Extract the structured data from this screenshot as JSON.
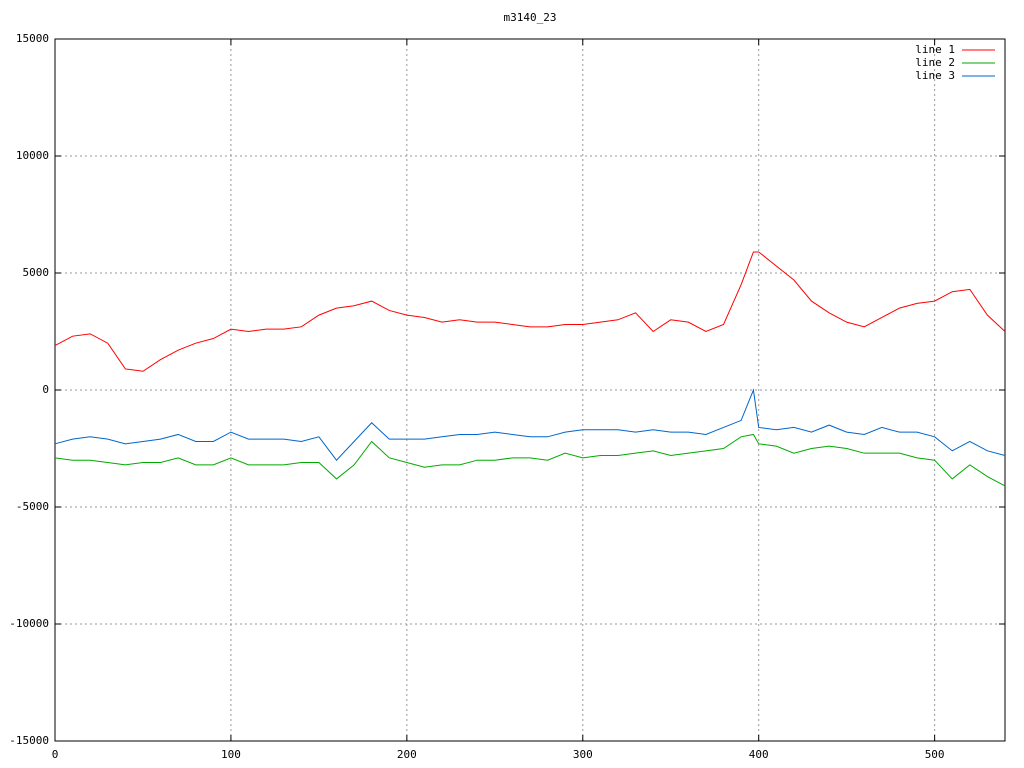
{
  "chart_data": {
    "type": "line",
    "title": "m3140_23",
    "x": [
      0,
      10,
      20,
      30,
      40,
      50,
      60,
      70,
      80,
      90,
      100,
      110,
      120,
      130,
      140,
      150,
      160,
      170,
      180,
      190,
      200,
      210,
      220,
      230,
      240,
      250,
      260,
      270,
      280,
      290,
      300,
      310,
      320,
      330,
      340,
      350,
      360,
      370,
      380,
      390,
      397,
      400,
      410,
      420,
      430,
      440,
      450,
      460,
      470,
      480,
      490,
      500,
      510,
      520,
      530,
      540
    ],
    "series": [
      {
        "name": "line 1",
        "color": "#ff0000",
        "values": [
          1900,
          2300,
          2400,
          2000,
          900,
          800,
          1300,
          1700,
          2000,
          2200,
          2600,
          2500,
          2600,
          2600,
          2700,
          3200,
          3500,
          3600,
          3800,
          3400,
          3200,
          3100,
          2900,
          3000,
          2900,
          2900,
          2800,
          2700,
          2700,
          2800,
          2800,
          2900,
          3000,
          3300,
          2500,
          3000,
          2900,
          2500,
          2800,
          4500,
          5900,
          5900,
          5300,
          4700,
          3800,
          3300,
          2900,
          2700,
          3100,
          3500,
          3700,
          3800,
          4200,
          4300,
          3200,
          2500
        ]
      },
      {
        "name": "line 2",
        "color": "#00aa00",
        "values": [
          -2900,
          -3000,
          -3000,
          -3100,
          -3200,
          -3100,
          -3100,
          -2900,
          -3200,
          -3200,
          -2900,
          -3200,
          -3200,
          -3200,
          -3100,
          -3100,
          -3800,
          -3200,
          -2200,
          -2900,
          -3100,
          -3300,
          -3200,
          -3200,
          -3000,
          -3000,
          -2900,
          -2900,
          -3000,
          -2700,
          -2900,
          -2800,
          -2800,
          -2700,
          -2600,
          -2800,
          -2700,
          -2600,
          -2500,
          -2000,
          -1900,
          -2300,
          -2400,
          -2700,
          -2500,
          -2400,
          -2500,
          -2700,
          -2700,
          -2700,
          -2900,
          -3000,
          -3800,
          -3200,
          -3700,
          -4100
        ]
      },
      {
        "name": "line 3",
        "color": "#0066cc",
        "values": [
          -2300,
          -2100,
          -2000,
          -2100,
          -2300,
          -2200,
          -2100,
          -1900,
          -2200,
          -2200,
          -1800,
          -2100,
          -2100,
          -2100,
          -2200,
          -2000,
          -3000,
          -2200,
          -1400,
          -2100,
          -2100,
          -2100,
          -2000,
          -1900,
          -1900,
          -1800,
          -1900,
          -2000,
          -2000,
          -1800,
          -1700,
          -1700,
          -1700,
          -1800,
          -1700,
          -1800,
          -1800,
          -1900,
          -1600,
          -1300,
          0,
          -1600,
          -1700,
          -1600,
          -1800,
          -1500,
          -1800,
          -1900,
          -1600,
          -1800,
          -1800,
          -2000,
          -2600,
          -2200,
          -2600,
          -2800
        ]
      }
    ],
    "xlim": [
      0,
      540
    ],
    "xticks": [
      0,
      100,
      200,
      300,
      400,
      500
    ],
    "ylim": [
      -15000,
      15000
    ],
    "yticks": [
      -15000,
      -10000,
      -5000,
      0,
      5000,
      10000,
      15000
    ],
    "grid": true,
    "legend": "top-right"
  }
}
